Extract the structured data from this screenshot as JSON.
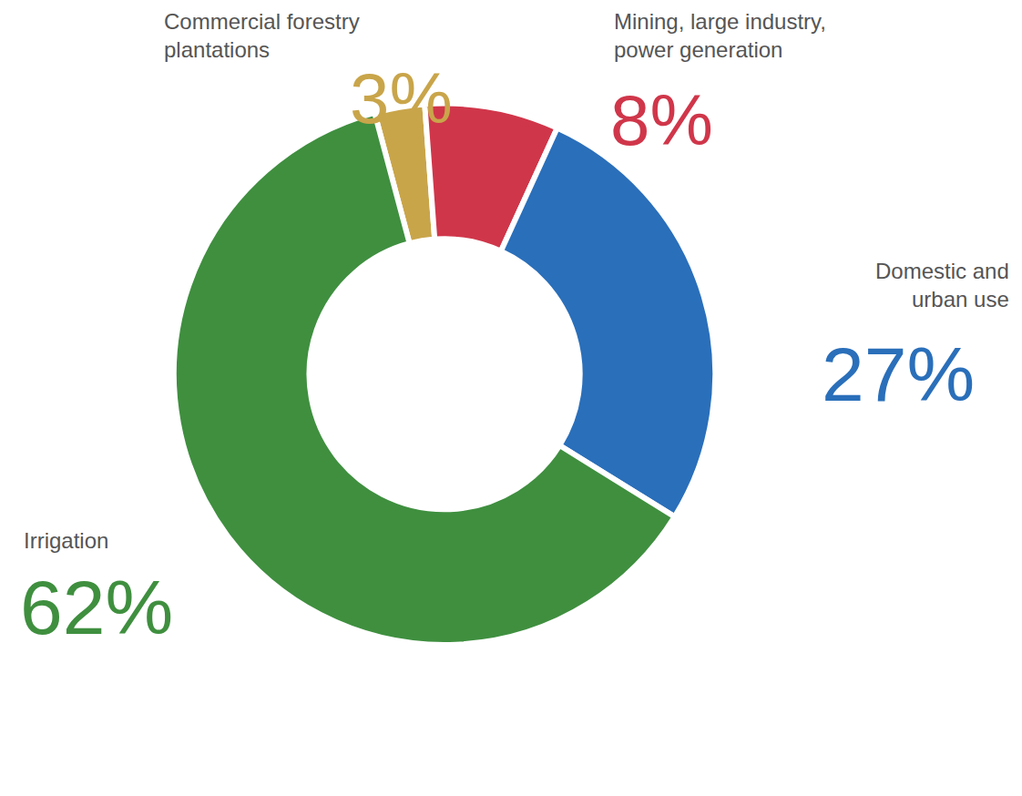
{
  "chart_data": {
    "type": "pie",
    "categories": [
      "Commercial forestry plantations",
      "Mining, large industry, power generation",
      "Domestic and urban use",
      "Irrigation"
    ],
    "values": [
      3,
      8,
      27,
      62
    ],
    "value_labels": [
      "3%",
      "8%",
      "27%",
      "62%"
    ],
    "colors": [
      "#c9a54a",
      "#d0364a",
      "#2a6fba",
      "#3f8f3f"
    ],
    "data_labels": true
  }
}
